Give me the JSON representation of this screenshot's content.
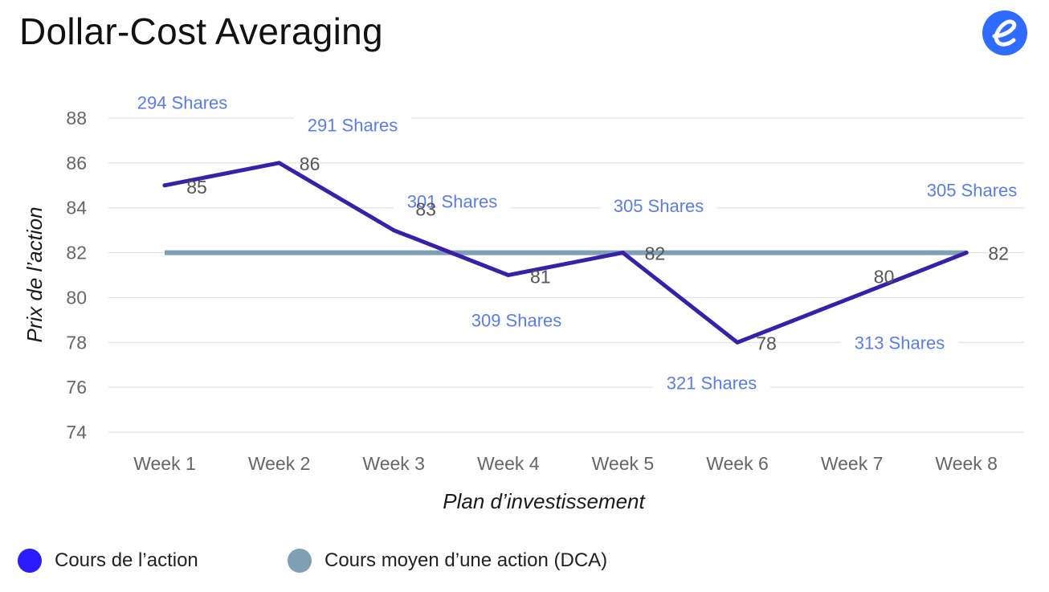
{
  "header": {
    "title": "Dollar-Cost Averaging",
    "logo_icon": "e-brand-logo-icon",
    "logo_color": "#2f6bff"
  },
  "legend": {
    "items": [
      {
        "label": "Cours de l’action",
        "color": "#2b1bff"
      },
      {
        "label": "Cours moyen d’une action (DCA)",
        "color": "#7f9fb5"
      }
    ]
  },
  "chart_data": {
    "type": "line",
    "title": "Dollar-Cost Averaging",
    "xlabel": "Plan d’investissement",
    "ylabel": "Prix de l’action",
    "categories": [
      "Week 1",
      "Week 2",
      "Week 3",
      "Week 4",
      "Week 5",
      "Week 6",
      "Week 7",
      "Week 8"
    ],
    "ylim": [
      74,
      88
    ],
    "yticks": [
      "74",
      "76",
      "78",
      "80",
      "82",
      "84",
      "86",
      "88"
    ],
    "grid": true,
    "legend_position": "bottom-left",
    "series": [
      {
        "name": "Cours de l’action",
        "color": "#3a1fa8",
        "values": [
          85,
          86,
          83,
          81,
          82,
          78,
          80,
          82
        ],
        "labels": [
          "85",
          "86",
          "83",
          "81",
          "82",
          "78",
          "80",
          "82"
        ]
      },
      {
        "name": "Cours moyen d’une action (DCA)",
        "color": "#7f9fb5",
        "values": [
          82,
          82,
          82,
          82,
          82,
          82,
          82,
          82
        ]
      }
    ],
    "annotations": [
      {
        "text": "294 Shares",
        "category": "Week 1",
        "y": 88.7
      },
      {
        "text": "291 Shares",
        "category": "Week 2",
        "y": 87.7
      },
      {
        "text": "301 Shares",
        "category": "Week 3",
        "y": 84.3
      },
      {
        "text": "309 Shares",
        "category": "Week 4",
        "y": 79.0
      },
      {
        "text": "305 Shares",
        "category": "Week 5",
        "y": 84.1
      },
      {
        "text": "321 Shares",
        "category": "Week 6",
        "y": 76.2
      },
      {
        "text": "313 Shares",
        "category": "Week 7",
        "y": 78.0
      },
      {
        "text": "305 Shares",
        "category": "Week 8",
        "y": 84.8
      }
    ]
  }
}
